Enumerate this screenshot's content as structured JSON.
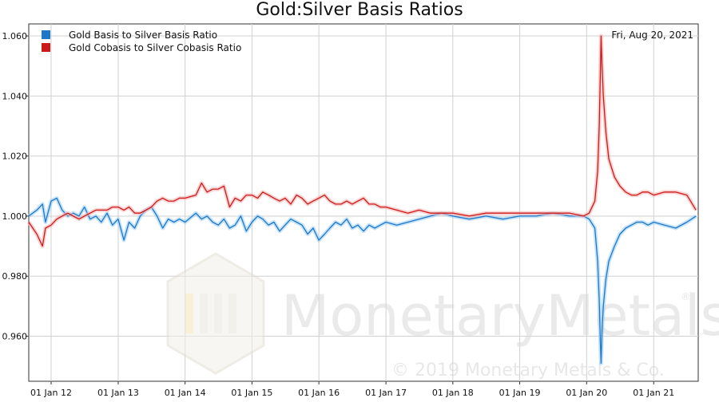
{
  "chart_data": {
    "type": "line",
    "title": "Gold:Silver Basis Ratios",
    "date_label": "Fri, Aug 20, 2021",
    "xlabel": "",
    "ylabel": "",
    "ylim": [
      0.945,
      1.064
    ],
    "xlim": [
      "2011-09-01",
      "2021-09-01"
    ],
    "x_ticks": [
      "01 Jan 12",
      "01 Jan 13",
      "01 Jan 14",
      "01 Jan 15",
      "01 Jan 16",
      "01 Jan 17",
      "01 Jan 18",
      "01 Jan 19",
      "01 Jan 20",
      "01 Jan 21"
    ],
    "y_ticks": [
      "0.960",
      "0.980",
      "1.000",
      "1.020",
      "1.040",
      "1.060"
    ],
    "grid": true,
    "legend_position": "top-left",
    "series": [
      {
        "name": "Gold Basis to Silver Basis Ratio",
        "color": "#1f77c8",
        "points": [
          [
            "2011-09-01",
            1.0
          ],
          [
            "2011-10-15",
            1.002
          ],
          [
            "2011-11-15",
            1.004
          ],
          [
            "2011-12-01",
            0.998
          ],
          [
            "2012-01-01",
            1.005
          ],
          [
            "2012-02-01",
            1.006
          ],
          [
            "2012-03-01",
            1.002
          ],
          [
            "2012-04-01",
            1.0
          ],
          [
            "2012-05-01",
            1.001
          ],
          [
            "2012-06-01",
            1.0
          ],
          [
            "2012-07-01",
            1.003
          ],
          [
            "2012-08-01",
            0.999
          ],
          [
            "2012-09-01",
            1.0
          ],
          [
            "2012-10-01",
            0.998
          ],
          [
            "2012-11-01",
            1.001
          ],
          [
            "2012-12-01",
            0.997
          ],
          [
            "2013-01-01",
            0.999
          ],
          [
            "2013-02-01",
            0.992
          ],
          [
            "2013-03-01",
            0.998
          ],
          [
            "2013-04-01",
            0.996
          ],
          [
            "2013-05-01",
            1.0
          ],
          [
            "2013-06-01",
            1.002
          ],
          [
            "2013-07-01",
            1.003
          ],
          [
            "2013-08-01",
            1.0
          ],
          [
            "2013-09-01",
            0.996
          ],
          [
            "2013-10-01",
            0.999
          ],
          [
            "2013-11-01",
            0.998
          ],
          [
            "2013-12-01",
            0.999
          ],
          [
            "2014-01-01",
            0.998
          ],
          [
            "2014-03-01",
            1.001
          ],
          [
            "2014-04-01",
            0.999
          ],
          [
            "2014-05-01",
            1.0
          ],
          [
            "2014-06-01",
            0.998
          ],
          [
            "2014-07-01",
            0.997
          ],
          [
            "2014-08-01",
            0.999
          ],
          [
            "2014-09-01",
            0.996
          ],
          [
            "2014-10-01",
            0.997
          ],
          [
            "2014-11-01",
            1.0
          ],
          [
            "2014-12-01",
            0.995
          ],
          [
            "2015-01-01",
            0.998
          ],
          [
            "2015-02-01",
            1.0
          ],
          [
            "2015-03-01",
            0.999
          ],
          [
            "2015-04-01",
            0.997
          ],
          [
            "2015-05-01",
            0.998
          ],
          [
            "2015-06-01",
            0.995
          ],
          [
            "2015-07-01",
            0.997
          ],
          [
            "2015-08-01",
            0.999
          ],
          [
            "2015-09-01",
            0.998
          ],
          [
            "2015-10-01",
            0.997
          ],
          [
            "2015-11-01",
            0.994
          ],
          [
            "2015-12-01",
            0.996
          ],
          [
            "2016-01-01",
            0.992
          ],
          [
            "2016-02-01",
            0.994
          ],
          [
            "2016-03-01",
            0.996
          ],
          [
            "2016-04-01",
            0.998
          ],
          [
            "2016-05-01",
            0.997
          ],
          [
            "2016-06-01",
            0.999
          ],
          [
            "2016-07-01",
            0.996
          ],
          [
            "2016-08-01",
            0.997
          ],
          [
            "2016-09-01",
            0.995
          ],
          [
            "2016-10-01",
            0.997
          ],
          [
            "2016-11-01",
            0.996
          ],
          [
            "2016-12-01",
            0.997
          ],
          [
            "2017-01-01",
            0.998
          ],
          [
            "2017-03-01",
            0.997
          ],
          [
            "2017-05-01",
            0.998
          ],
          [
            "2017-07-01",
            0.999
          ],
          [
            "2017-09-01",
            1.0
          ],
          [
            "2017-11-01",
            1.001
          ],
          [
            "2018-01-01",
            1.0
          ],
          [
            "2018-04-01",
            0.999
          ],
          [
            "2018-07-01",
            1.0
          ],
          [
            "2018-10-01",
            0.999
          ],
          [
            "2019-01-01",
            1.0
          ],
          [
            "2019-04-01",
            1.0
          ],
          [
            "2019-07-01",
            1.001
          ],
          [
            "2019-10-01",
            1.0
          ],
          [
            "2019-12-15",
            1.0
          ],
          [
            "2020-01-15",
            0.999
          ],
          [
            "2020-02-15",
            0.996
          ],
          [
            "2020-03-01",
            0.985
          ],
          [
            "2020-03-10",
            0.972
          ],
          [
            "2020-03-16",
            0.958
          ],
          [
            "2020-03-20",
            0.951
          ],
          [
            "2020-03-25",
            0.962
          ],
          [
            "2020-04-01",
            0.97
          ],
          [
            "2020-04-15",
            0.979
          ],
          [
            "2020-05-01",
            0.985
          ],
          [
            "2020-06-01",
            0.99
          ],
          [
            "2020-07-01",
            0.994
          ],
          [
            "2020-08-01",
            0.996
          ],
          [
            "2020-09-01",
            0.997
          ],
          [
            "2020-10-01",
            0.998
          ],
          [
            "2020-11-01",
            0.998
          ],
          [
            "2020-12-01",
            0.997
          ],
          [
            "2021-01-01",
            0.998
          ],
          [
            "2021-03-01",
            0.997
          ],
          [
            "2021-05-01",
            0.996
          ],
          [
            "2021-07-01",
            0.998
          ],
          [
            "2021-08-20",
            1.0
          ]
        ]
      },
      {
        "name": "Gold Cobasis to Silver Cobasis Ratio",
        "color": "#cc1a1a",
        "points": [
          [
            "2011-09-01",
            0.998
          ],
          [
            "2011-10-15",
            0.994
          ],
          [
            "2011-11-15",
            0.99
          ],
          [
            "2011-12-01",
            0.996
          ],
          [
            "2012-01-01",
            0.997
          ],
          [
            "2012-02-01",
            0.999
          ],
          [
            "2012-03-01",
            1.0
          ],
          [
            "2012-04-01",
            1.001
          ],
          [
            "2012-05-01",
            1.0
          ],
          [
            "2012-06-01",
            0.999
          ],
          [
            "2012-07-01",
            1.0
          ],
          [
            "2012-08-01",
            1.001
          ],
          [
            "2012-09-01",
            1.002
          ],
          [
            "2012-10-01",
            1.002
          ],
          [
            "2012-11-01",
            1.002
          ],
          [
            "2012-12-01",
            1.003
          ],
          [
            "2013-01-01",
            1.003
          ],
          [
            "2013-02-01",
            1.002
          ],
          [
            "2013-03-01",
            1.003
          ],
          [
            "2013-04-01",
            1.001
          ],
          [
            "2013-05-01",
            1.001
          ],
          [
            "2013-06-01",
            1.002
          ],
          [
            "2013-07-01",
            1.003
          ],
          [
            "2013-08-01",
            1.005
          ],
          [
            "2013-09-01",
            1.006
          ],
          [
            "2013-10-01",
            1.005
          ],
          [
            "2013-11-01",
            1.005
          ],
          [
            "2013-12-01",
            1.006
          ],
          [
            "2014-01-01",
            1.006
          ],
          [
            "2014-03-01",
            1.007
          ],
          [
            "2014-04-01",
            1.011
          ],
          [
            "2014-05-01",
            1.008
          ],
          [
            "2014-06-01",
            1.009
          ],
          [
            "2014-07-01",
            1.009
          ],
          [
            "2014-08-01",
            1.01
          ],
          [
            "2014-09-01",
            1.003
          ],
          [
            "2014-10-01",
            1.006
          ],
          [
            "2014-11-01",
            1.005
          ],
          [
            "2014-12-01",
            1.007
          ],
          [
            "2015-01-01",
            1.007
          ],
          [
            "2015-02-01",
            1.006
          ],
          [
            "2015-03-01",
            1.008
          ],
          [
            "2015-04-01",
            1.007
          ],
          [
            "2015-05-01",
            1.006
          ],
          [
            "2015-06-01",
            1.005
          ],
          [
            "2015-07-01",
            1.006
          ],
          [
            "2015-08-01",
            1.004
          ],
          [
            "2015-09-01",
            1.007
          ],
          [
            "2015-10-01",
            1.006
          ],
          [
            "2015-11-01",
            1.004
          ],
          [
            "2015-12-01",
            1.005
          ],
          [
            "2016-01-01",
            1.006
          ],
          [
            "2016-02-01",
            1.007
          ],
          [
            "2016-03-01",
            1.005
          ],
          [
            "2016-04-01",
            1.004
          ],
          [
            "2016-05-01",
            1.004
          ],
          [
            "2016-06-01",
            1.005
          ],
          [
            "2016-07-01",
            1.004
          ],
          [
            "2016-08-01",
            1.005
          ],
          [
            "2016-09-01",
            1.006
          ],
          [
            "2016-10-01",
            1.004
          ],
          [
            "2016-11-01",
            1.004
          ],
          [
            "2016-12-01",
            1.003
          ],
          [
            "2017-01-01",
            1.003
          ],
          [
            "2017-03-01",
            1.002
          ],
          [
            "2017-05-01",
            1.001
          ],
          [
            "2017-07-01",
            1.002
          ],
          [
            "2017-09-01",
            1.001
          ],
          [
            "2017-11-01",
            1.001
          ],
          [
            "2018-01-01",
            1.001
          ],
          [
            "2018-04-01",
            1.0
          ],
          [
            "2018-07-01",
            1.001
          ],
          [
            "2018-10-01",
            1.001
          ],
          [
            "2019-01-01",
            1.001
          ],
          [
            "2019-04-01",
            1.001
          ],
          [
            "2019-07-01",
            1.001
          ],
          [
            "2019-10-01",
            1.001
          ],
          [
            "2019-12-15",
            1.0
          ],
          [
            "2020-01-15",
            1.001
          ],
          [
            "2020-02-15",
            1.005
          ],
          [
            "2020-03-01",
            1.015
          ],
          [
            "2020-03-10",
            1.03
          ],
          [
            "2020-03-16",
            1.048
          ],
          [
            "2020-03-20",
            1.06
          ],
          [
            "2020-03-25",
            1.05
          ],
          [
            "2020-04-01",
            1.04
          ],
          [
            "2020-04-15",
            1.028
          ],
          [
            "2020-05-01",
            1.019
          ],
          [
            "2020-06-01",
            1.013
          ],
          [
            "2020-07-01",
            1.01
          ],
          [
            "2020-08-01",
            1.008
          ],
          [
            "2020-09-01",
            1.007
          ],
          [
            "2020-10-01",
            1.007
          ],
          [
            "2020-11-01",
            1.008
          ],
          [
            "2020-12-01",
            1.008
          ],
          [
            "2021-01-01",
            1.007
          ],
          [
            "2021-03-01",
            1.008
          ],
          [
            "2021-05-01",
            1.008
          ],
          [
            "2021-07-01",
            1.007
          ],
          [
            "2021-08-20",
            1.002
          ]
        ]
      }
    ]
  },
  "watermark": {
    "brand_text": "MonetaryMetals",
    "brand_mark": "®",
    "copyright": "© 2019 Monetary Metals & Co."
  }
}
